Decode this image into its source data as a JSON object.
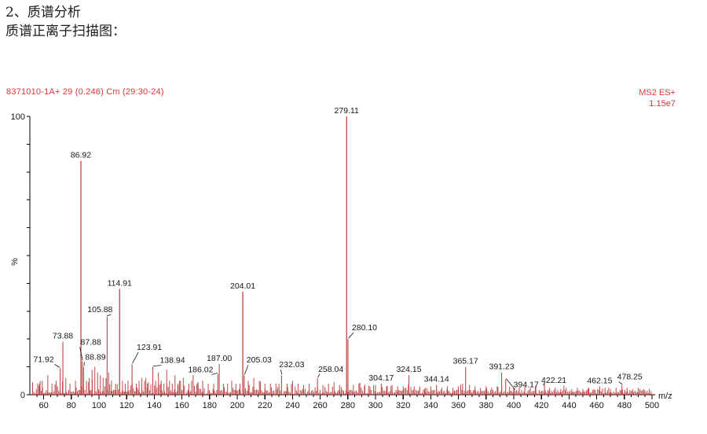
{
  "document": {
    "heading": "2、质谱分析",
    "caption": "质谱正离子扫描图："
  },
  "chart_data": {
    "type": "bar",
    "chart_kind": "mass-spectrum",
    "scan_info": "8371010-1A+ 29 (0.246) Cm (29:30-24)",
    "mode": "MS2 ES+",
    "intensity": "1.15e7",
    "xlabel": "m/z",
    "ylabel": "%",
    "xlim": [
      50,
      500
    ],
    "ylim": [
      0,
      100
    ],
    "x_tick_start": 60,
    "x_tick_step": 20,
    "x_minor_step": 5,
    "y_tick_step": 10,
    "y_top_label": "100",
    "y_bottom_label": "0",
    "legend": "none",
    "grid": false,
    "peaks": [
      {
        "mz": 71.92,
        "pct": 9.5,
        "label": "71.92",
        "dx": -21,
        "dy": -4,
        "leader": true
      },
      {
        "mz": 73.88,
        "pct": 19,
        "label": "73.88"
      },
      {
        "mz": 86.92,
        "pct": 84,
        "label": "86.92"
      },
      {
        "mz": 87.88,
        "pct": 12,
        "label": "87.88",
        "dx": 11,
        "dy": -17,
        "leader": true
      },
      {
        "mz": 88.89,
        "pct": 10,
        "label": "88.89",
        "dx": 15,
        "dy": -5,
        "leader": true
      },
      {
        "mz": 105.88,
        "pct": 28,
        "label": "105.88",
        "dx": -9,
        "dy": -2,
        "leader": true
      },
      {
        "mz": 114.91,
        "pct": 38,
        "label": "114.91"
      },
      {
        "mz": 123.91,
        "pct": 11,
        "label": "123.91",
        "dx": 22,
        "dy": -14,
        "leader": true
      },
      {
        "mz": 138.94,
        "pct": 10,
        "label": "138.94",
        "dx": 25,
        "dy": -1,
        "leader": true
      },
      {
        "mz": 186.02,
        "pct": 7.5,
        "label": "186.02",
        "dx": -22,
        "dy": 2,
        "leader": true
      },
      {
        "mz": 187.0,
        "pct": 11,
        "label": "187.00"
      },
      {
        "mz": 204.01,
        "pct": 37,
        "label": "204.01"
      },
      {
        "mz": 205.03,
        "pct": 7,
        "label": "205.03",
        "dx": 19,
        "dy": -12,
        "leader": true
      },
      {
        "mz": 232.03,
        "pct": 7,
        "label": "232.03",
        "dx": 13,
        "dy": -6,
        "leader": true
      },
      {
        "mz": 258.04,
        "pct": 6,
        "label": "258.04",
        "dx": 17,
        "dy": -4,
        "leader": true
      },
      {
        "mz": 279.11,
        "pct": 100,
        "label": "279.11"
      },
      {
        "mz": 280.1,
        "pct": 20,
        "label": "280.10",
        "dx": 21,
        "dy": -7,
        "leader": true
      },
      {
        "mz": 304.17,
        "pct": 4,
        "label": "304.17"
      },
      {
        "mz": 324.15,
        "pct": 7,
        "label": "324.15"
      },
      {
        "mz": 344.14,
        "pct": 3.5,
        "label": "344.14"
      },
      {
        "mz": 365.17,
        "pct": 10,
        "label": "365.17"
      },
      {
        "mz": 391.23,
        "pct": 8,
        "label": "391.23"
      },
      {
        "mz": 394.17,
        "pct": 5.5,
        "label": "394.17",
        "dx": 26,
        "dy": 14,
        "leader": true
      },
      {
        "mz": 422.21,
        "pct": 4,
        "label": "422.21",
        "dx": 12,
        "dy": 3,
        "leader": true
      },
      {
        "mz": 462.15,
        "pct": 3,
        "label": "462.15"
      },
      {
        "mz": 478.25,
        "pct": 3.5,
        "label": "478.25",
        "dx": 10,
        "dy": -3,
        "leader": true
      }
    ],
    "noise_peaks": [
      [
        57,
        4
      ],
      [
        59,
        5
      ],
      [
        63,
        7
      ],
      [
        66,
        4
      ],
      [
        69,
        5
      ],
      [
        76,
        6
      ],
      [
        79,
        4
      ],
      [
        83,
        5
      ],
      [
        91,
        5
      ],
      [
        93,
        6
      ],
      [
        95,
        9
      ],
      [
        97,
        10
      ],
      [
        99,
        8
      ],
      [
        101,
        7
      ],
      [
        103,
        6
      ],
      [
        107,
        8
      ],
      [
        109,
        5
      ],
      [
        112,
        4
      ],
      [
        117,
        5
      ],
      [
        119,
        4
      ],
      [
        121,
        5
      ],
      [
        127,
        4
      ],
      [
        129,
        5
      ],
      [
        131,
        6
      ],
      [
        133,
        5
      ],
      [
        135,
        4
      ],
      [
        141,
        5
      ],
      [
        143,
        8
      ],
      [
        145,
        5
      ],
      [
        147,
        4
      ],
      [
        149,
        9
      ],
      [
        151,
        5
      ],
      [
        153,
        4
      ],
      [
        155,
        7
      ],
      [
        157,
        4
      ],
      [
        159,
        5
      ],
      [
        161,
        6
      ],
      [
        165,
        4
      ],
      [
        167,
        5
      ],
      [
        171,
        4
      ],
      [
        175,
        5
      ],
      [
        179,
        4
      ],
      [
        183,
        4
      ],
      [
        190,
        4
      ],
      [
        193,
        4
      ],
      [
        196,
        5
      ],
      [
        199,
        4
      ],
      [
        202,
        4
      ],
      [
        208,
        5
      ],
      [
        212,
        6
      ],
      [
        216,
        5
      ],
      [
        220,
        4
      ],
      [
        224,
        4
      ],
      [
        228,
        4
      ],
      [
        236,
        4
      ],
      [
        240,
        5
      ],
      [
        244,
        4
      ],
      [
        248,
        3.5
      ],
      [
        252,
        4
      ],
      [
        262,
        3.5
      ],
      [
        266,
        4
      ],
      [
        270,
        4.5
      ],
      [
        274,
        3.5
      ],
      [
        284,
        3.5
      ],
      [
        288,
        4
      ],
      [
        292,
        3
      ],
      [
        296,
        3
      ],
      [
        300,
        3.5
      ],
      [
        308,
        3
      ],
      [
        312,
        3.5
      ],
      [
        316,
        3
      ],
      [
        320,
        3
      ],
      [
        328,
        3
      ],
      [
        332,
        3
      ],
      [
        336,
        2.5
      ],
      [
        340,
        3
      ],
      [
        348,
        2.5
      ],
      [
        352,
        3
      ],
      [
        356,
        2.5
      ],
      [
        360,
        3
      ],
      [
        363,
        4
      ],
      [
        368,
        3.5
      ],
      [
        372,
        3
      ],
      [
        376,
        2.5
      ],
      [
        380,
        3
      ],
      [
        384,
        2.5
      ],
      [
        388,
        3
      ],
      [
        397,
        3
      ],
      [
        400,
        2.5
      ],
      [
        404,
        2.5
      ],
      [
        408,
        3
      ],
      [
        412,
        2.5
      ],
      [
        416,
        2.5
      ],
      [
        426,
        2.5
      ],
      [
        430,
        2.5
      ],
      [
        434,
        2
      ],
      [
        438,
        2.5
      ],
      [
        442,
        2
      ],
      [
        446,
        2.5
      ],
      [
        450,
        2
      ],
      [
        454,
        2.5
      ],
      [
        458,
        2
      ],
      [
        466,
        2.5
      ],
      [
        470,
        2
      ],
      [
        474,
        2.5
      ],
      [
        482,
        2.5
      ],
      [
        486,
        2
      ],
      [
        490,
        2.5
      ],
      [
        494,
        2
      ],
      [
        498,
        2
      ]
    ],
    "grass": {
      "seed": 7,
      "min": 0.3,
      "step": 0.9
    },
    "colors": {
      "bar": "#bf4747",
      "header": "#e03535",
      "text": "#161616",
      "axis": "#000000"
    }
  }
}
